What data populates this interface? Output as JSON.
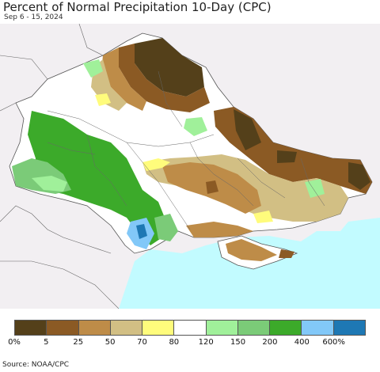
{
  "title": "Percent of Normal Precipitation 10-Day (CPC)",
  "date_range": "Sep 6 - 15, 2024",
  "source": "Source: NOAA/CPC",
  "legend": {
    "colors": [
      "#54401a",
      "#8b5a24",
      "#be8c48",
      "#d2bf84",
      "#fffc7c",
      "#ffffff",
      "#a0f09a",
      "#7bcb78",
      "#3caa2a",
      "#82c8f8",
      "#1e78b4"
    ],
    "labels": [
      "0%",
      "5",
      "25",
      "50",
      "70",
      "80",
      "120",
      "150",
      "200",
      "400",
      "600%"
    ]
  },
  "palette": {
    "sea": "#c2fbff",
    "outside": "#f2eff2",
    "border": "#555555"
  }
}
